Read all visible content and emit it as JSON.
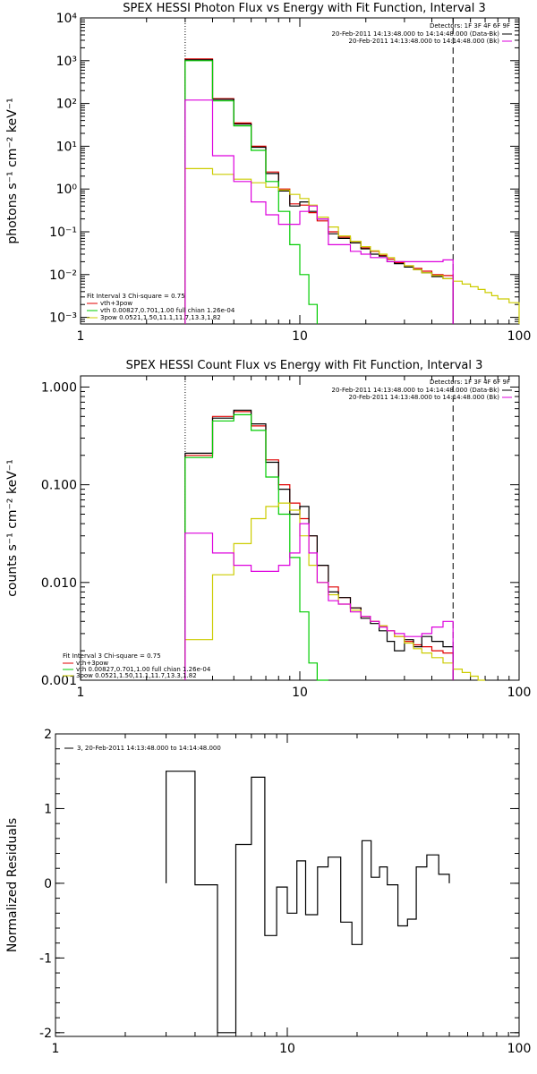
{
  "chart_data": [
    {
      "type": "line",
      "title": "SPEX HESSI Photon Flux vs Energy with Fit Function, Interval 3",
      "ylabel": "photons s⁻¹ cm⁻² keV⁻¹",
      "xlabel": "",
      "xscale": "log",
      "yscale": "log",
      "xlim": [
        1,
        100
      ],
      "ylim": [
        0.0007,
        10000
      ],
      "xticks": [
        "1",
        "10",
        "100"
      ],
      "yticks": [
        "10⁻³",
        "10⁻²",
        "10⁻¹",
        "10⁰",
        "10¹",
        "10²",
        "10³",
        "10⁴"
      ],
      "ytick_values": [
        0.001,
        0.01,
        0.1,
        1,
        10,
        100,
        1000,
        10000
      ],
      "vlines": [
        {
          "x": 3,
          "style": "dotted"
        },
        {
          "x": 50,
          "style": "dashed"
        }
      ],
      "info_lines": [
        "Detectors: 1F 3F 4F 6F 9F",
        "20-Feb-2011 14:13:48.000 to 14:14:48.000 (Data-Bk)",
        "20-Feb-2011 14:13:48.000 to 14:14:48.000 (Bk)"
      ],
      "legend": [
        "Fit Interval 3   Chi-square = 0.75",
        "vth+3pow",
        "vth 0.00827,0.701,1.00   full chian 1.26e-04",
        "3pow 0.0521,1.50,11.1,11.7,13.3,1.82"
      ],
      "series": [
        {
          "name": "vth+3pow",
          "color": "#e00000",
          "edges": [
            3,
            4,
            5,
            6,
            7,
            8,
            9,
            10,
            11,
            12,
            13.5,
            15,
            17,
            19,
            21,
            23,
            25,
            27,
            30,
            33,
            36,
            40,
            45,
            50
          ],
          "values": [
            1100,
            130,
            35,
            10,
            2.5,
            1.0,
            0.45,
            0.42,
            0.28,
            0.18,
            0.1,
            0.075,
            0.055,
            0.042,
            0.035,
            0.028,
            0.023,
            0.019,
            0.016,
            0.014,
            0.012,
            0.01,
            0.0095
          ]
        },
        {
          "name": "Data-Bk",
          "color": "#000000",
          "edges": [
            3,
            4,
            5,
            6,
            7,
            8,
            9,
            10,
            11,
            12,
            13.5,
            15,
            17,
            19,
            21,
            23,
            25,
            27,
            30,
            33,
            36,
            40,
            45,
            50
          ],
          "values": [
            1050,
            125,
            33,
            9.5,
            2.3,
            0.9,
            0.4,
            0.5,
            0.3,
            0.2,
            0.09,
            0.07,
            0.055,
            0.04,
            0.03,
            0.027,
            0.02,
            0.018,
            0.015,
            0.013,
            0.011,
            0.009,
            0.008
          ]
        },
        {
          "name": "vth",
          "color": "#00cc00",
          "edges": [
            3,
            4,
            5,
            6,
            7,
            8,
            9,
            10,
            11,
            12
          ],
          "values": [
            1000,
            115,
            30,
            8,
            1.5,
            0.3,
            0.05,
            0.01,
            0.002
          ]
        },
        {
          "name": "3pow",
          "color": "#cccc00",
          "edges": [
            3,
            4,
            5,
            6,
            7,
            8,
            9,
            10,
            11,
            12,
            13.5,
            15,
            17,
            19,
            21,
            23,
            25,
            27,
            30,
            33,
            36,
            40,
            45,
            50,
            55,
            60,
            65,
            70,
            75,
            80,
            90,
            100
          ],
          "values": [
            3,
            2.2,
            1.7,
            1.4,
            1.1,
            0.95,
            0.75,
            0.6,
            0.42,
            0.22,
            0.13,
            0.08,
            0.06,
            0.045,
            0.036,
            0.03,
            0.025,
            0.02,
            0.016,
            0.013,
            0.011,
            0.0095,
            0.008,
            0.007,
            0.006,
            0.0052,
            0.0045,
            0.0038,
            0.0032,
            0.0027,
            0.0022
          ]
        },
        {
          "name": "Bk",
          "color": "#dd00dd",
          "edges": [
            3,
            4,
            5,
            6,
            7,
            8,
            9,
            10,
            11,
            12,
            13.5,
            15,
            17,
            19,
            21,
            23,
            25,
            27,
            30,
            33,
            36,
            40,
            45,
            50
          ],
          "values": [
            120,
            6,
            1.5,
            0.5,
            0.25,
            0.15,
            0.15,
            0.3,
            0.4,
            0.2,
            0.05,
            0.05,
            0.035,
            0.03,
            0.025,
            0.025,
            0.02,
            0.02,
            0.02,
            0.02,
            0.02,
            0.02,
            0.022
          ]
        }
      ]
    },
    {
      "type": "line",
      "title": "SPEX HESSI Count Flux vs Energy with Fit Function, Interval 3",
      "ylabel": "counts s⁻¹ cm⁻² keV⁻¹",
      "xlabel": "",
      "xscale": "log",
      "yscale": "log",
      "xlim": [
        1,
        100
      ],
      "ylim": [
        0.001,
        1.3
      ],
      "xticks": [
        "1",
        "10",
        "100"
      ],
      "yticks": [
        "0.001",
        "0.010",
        "0.100",
        "1.000"
      ],
      "ytick_values": [
        0.001,
        0.01,
        0.1,
        1.0
      ],
      "vlines": [
        {
          "x": 3,
          "style": "dotted"
        },
        {
          "x": 50,
          "style": "dashed"
        }
      ],
      "info_lines": [
        "Detectors: 1F 3F 4F 6F 9F",
        "20-Feb-2011 14:13:48.000 to 14:14:48.000 (Data-Bk)",
        "20-Feb-2011 14:13:48.000 to 14:14:48.000 (Bk)"
      ],
      "legend": [
        "Fit Interval 3   Chi-square = 0.75",
        "vth+3pow",
        "vth 0.00827,0.701,1.00   full chian 1.26e-04",
        "3pow 0.0521,1.50,11.1,11.7,13.3,1.82"
      ],
      "series": [
        {
          "name": "vth+3pow",
          "color": "#e00000",
          "edges": [
            3,
            4,
            5,
            6,
            7,
            8,
            9,
            10,
            11,
            12,
            13.5,
            15,
            17,
            19,
            21,
            23,
            25,
            27,
            30,
            33,
            36,
            40,
            45,
            50
          ],
          "values": [
            0.2,
            0.5,
            0.56,
            0.4,
            0.18,
            0.1,
            0.065,
            0.045,
            0.03,
            0.015,
            0.009,
            0.007,
            0.0055,
            0.0045,
            0.004,
            0.0036,
            0.0032,
            0.0028,
            0.0025,
            0.0023,
            0.0022,
            0.002,
            0.0019
          ]
        },
        {
          "name": "Data-Bk",
          "color": "#000000",
          "edges": [
            3,
            4,
            5,
            6,
            7,
            8,
            9,
            10,
            11,
            12,
            13.5,
            15,
            17,
            19,
            21,
            23,
            25,
            27,
            30,
            33,
            36,
            40,
            45,
            50
          ],
          "values": [
            0.21,
            0.48,
            0.58,
            0.42,
            0.17,
            0.09,
            0.05,
            0.06,
            0.03,
            0.015,
            0.008,
            0.007,
            0.0055,
            0.0043,
            0.0038,
            0.0032,
            0.0025,
            0.002,
            0.0026,
            0.0022,
            0.0028,
            0.0025,
            0.0022
          ]
        },
        {
          "name": "vth",
          "color": "#00cc00",
          "edges": [
            3,
            4,
            5,
            6,
            7,
            8,
            9,
            10,
            11,
            12,
            13.5
          ],
          "values": [
            0.19,
            0.45,
            0.52,
            0.36,
            0.12,
            0.05,
            0.018,
            0.005,
            0.0015,
            0.001
          ]
        },
        {
          "name": "3pow",
          "color": "#cccc00",
          "edges": [
            3,
            4,
            5,
            6,
            7,
            8,
            9,
            10,
            11,
            12,
            13.5,
            15,
            17,
            19,
            21,
            23,
            25,
            27,
            30,
            33,
            36,
            40,
            45,
            50,
            55,
            60,
            65,
            70
          ],
          "values": [
            0.0026,
            0.012,
            0.025,
            0.045,
            0.06,
            0.065,
            0.055,
            0.03,
            0.015,
            0.01,
            0.0075,
            0.006,
            0.0052,
            0.0045,
            0.004,
            0.0036,
            0.0032,
            0.0028,
            0.0024,
            0.0021,
            0.0019,
            0.0017,
            0.0015,
            0.0013,
            0.0012,
            0.0011,
            0.001
          ]
        },
        {
          "name": "Bk",
          "color": "#dd00dd",
          "edges": [
            3,
            4,
            5,
            6,
            7,
            8,
            9,
            10,
            11,
            12,
            13.5,
            15,
            17,
            19,
            21,
            23,
            25,
            27,
            30,
            33,
            36,
            40,
            45,
            50
          ],
          "values": [
            0.032,
            0.02,
            0.015,
            0.013,
            0.013,
            0.015,
            0.02,
            0.04,
            0.02,
            0.01,
            0.0065,
            0.006,
            0.005,
            0.0045,
            0.004,
            0.0035,
            0.0032,
            0.003,
            0.0028,
            0.0028,
            0.003,
            0.0035,
            0.004
          ]
        }
      ]
    },
    {
      "type": "line",
      "title": "",
      "ylabel": "Normalized Residuals",
      "xlabel": "",
      "xscale": "log",
      "yscale": "linear",
      "xlim": [
        1,
        100
      ],
      "ylim": [
        -2.05,
        2
      ],
      "xticks": [
        "1",
        "10",
        "100"
      ],
      "yticks": [
        "-2",
        "-1",
        "0",
        "1",
        "2"
      ],
      "ytick_values": [
        -2,
        -1,
        0,
        1,
        2
      ],
      "legend": [
        "3, 20-Feb-2011 14:13:48.000 to 14:14:48.000"
      ],
      "series": [
        {
          "name": "3, 20-Feb-2011 14:13:48.000 to 14:14:48.000",
          "color": "#000000",
          "edges": [
            3,
            4,
            5,
            6,
            7,
            8,
            9,
            10,
            11,
            12,
            13.5,
            15,
            17,
            19,
            21,
            23,
            25,
            27,
            30,
            33,
            36,
            40,
            45,
            50
          ],
          "values": [
            1.5,
            -0.02,
            -2.0,
            0.52,
            1.42,
            -0.7,
            -0.05,
            -0.4,
            0.3,
            -0.42,
            0.22,
            0.35,
            -0.52,
            -0.82,
            0.57,
            0.08,
            0.22,
            -0.02,
            -0.57,
            -0.48,
            0.22,
            0.38,
            0.12
          ]
        }
      ]
    }
  ]
}
